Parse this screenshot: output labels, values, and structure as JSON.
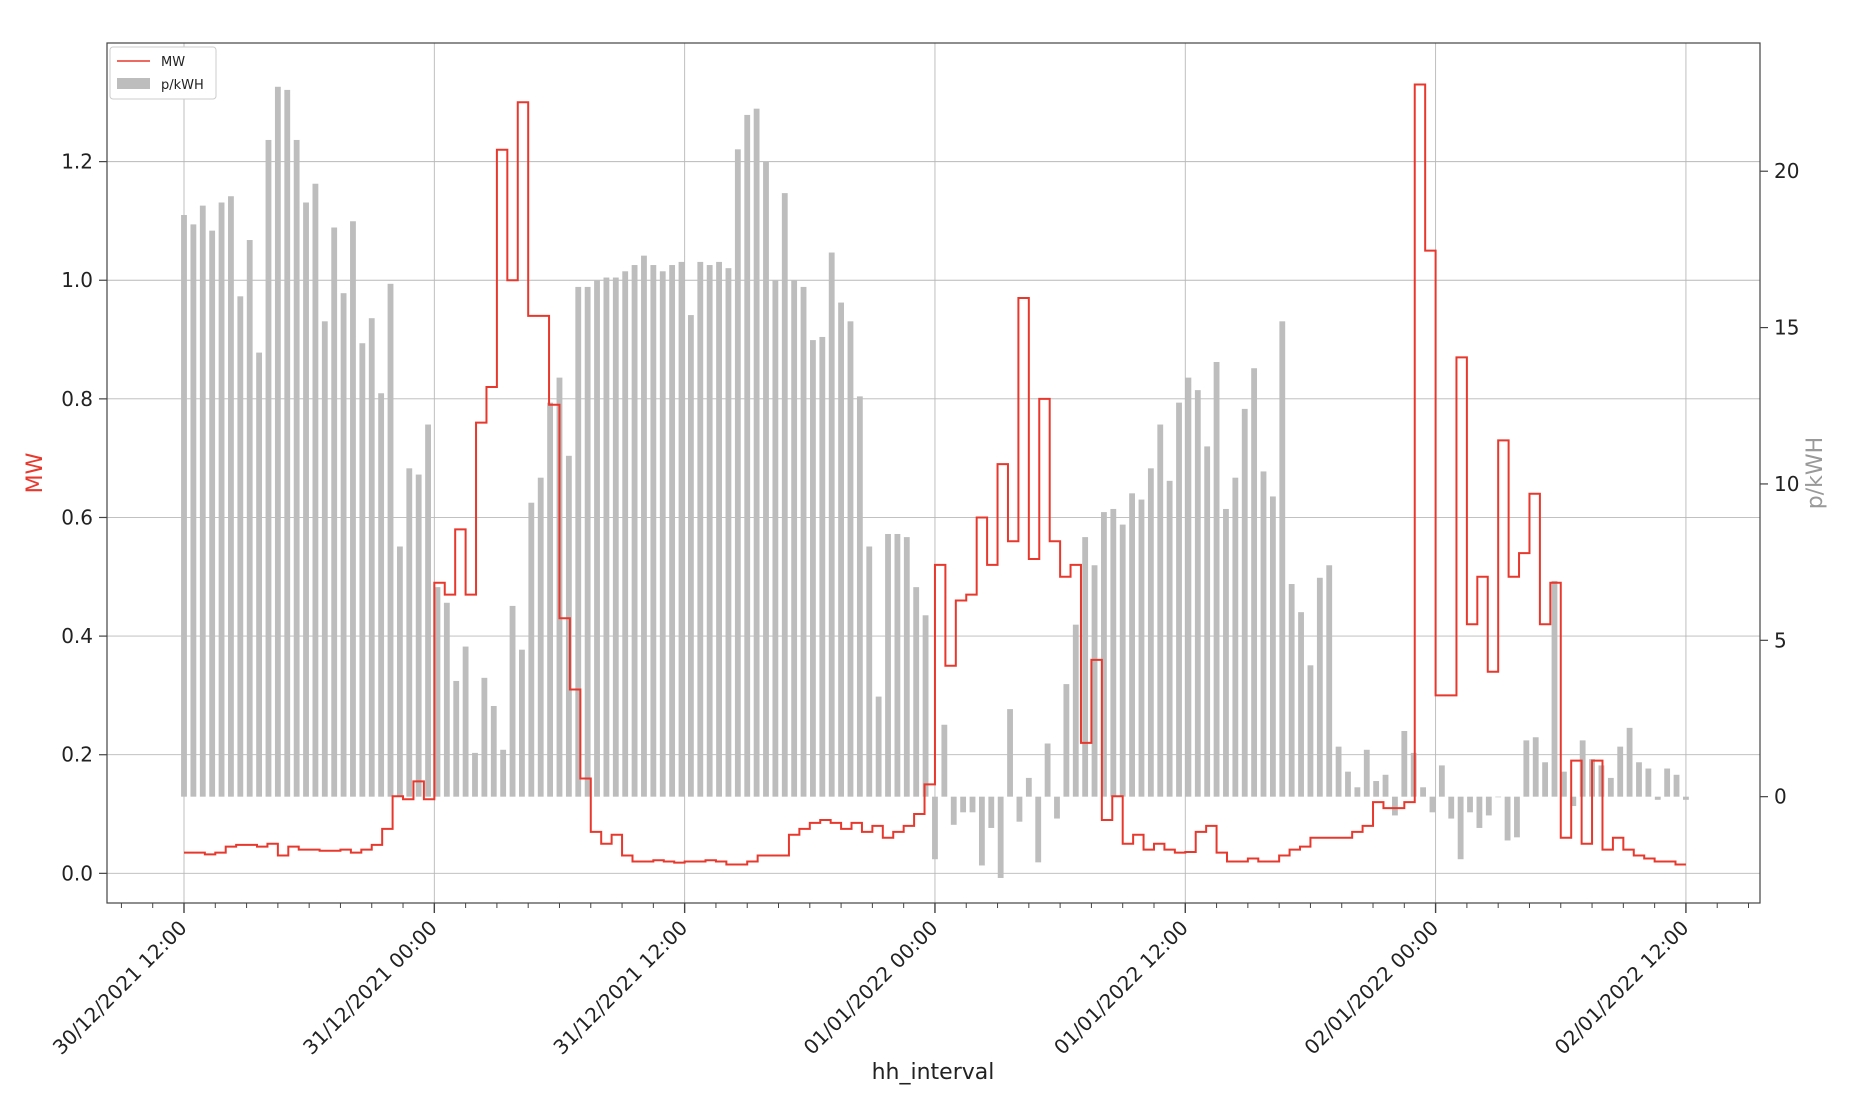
{
  "chart_data": {
    "type": "bar+line",
    "xlabel": "hh_interval",
    "ylabel_left": "MW",
    "ylabel_right": "p/kWH",
    "ylim_left": [
      -0.05,
      1.4
    ],
    "ylim_right": [
      -3.4,
      24.1
    ],
    "x_ticks": [
      {
        "label": "30/12/2021 12:00",
        "index": 0
      },
      {
        "label": "31/12/2021 00:00",
        "index": 24
      },
      {
        "label": "31/12/2021 12:00",
        "index": 48
      },
      {
        "label": "01/01/2022 00:00",
        "index": 72
      },
      {
        "label": "01/01/2022 12:00",
        "index": 96
      },
      {
        "label": "02/01/2022 00:00",
        "index": 120
      },
      {
        "label": "02/01/2022 12:00",
        "index": 144
      }
    ],
    "yticks_left": [
      "0.0",
      "0.2",
      "0.4",
      "0.6",
      "0.8",
      "1.0",
      "1.2"
    ],
    "yticks_right": [
      "0",
      "5",
      "10",
      "15",
      "20"
    ],
    "grid": true,
    "legend_position": "top-left",
    "colors": {
      "MW": "#e8382d",
      "p/kWH": "#bdbdbd"
    },
    "series": [
      {
        "name": "MW",
        "kind": "step",
        "values": [
          0.035,
          0.035,
          0.032,
          0.035,
          0.045,
          0.048,
          0.048,
          0.045,
          0.05,
          0.03,
          0.045,
          0.04,
          0.04,
          0.038,
          0.038,
          0.04,
          0.035,
          0.04,
          0.048,
          0.075,
          0.13,
          0.125,
          0.155,
          0.125,
          0.49,
          0.47,
          0.58,
          0.47,
          0.76,
          0.82,
          1.22,
          1.0,
          1.3,
          0.94,
          0.94,
          0.79,
          0.43,
          0.31,
          0.16,
          0.07,
          0.05,
          0.065,
          0.03,
          0.02,
          0.02,
          0.022,
          0.02,
          0.018,
          0.02,
          0.02,
          0.022,
          0.02,
          0.015,
          0.015,
          0.02,
          0.03,
          0.03,
          0.03,
          0.065,
          0.075,
          0.085,
          0.09,
          0.085,
          0.075,
          0.085,
          0.07,
          0.08,
          0.06,
          0.07,
          0.08,
          0.1,
          0.15,
          0.52,
          0.35,
          0.46,
          0.47,
          0.6,
          0.52,
          0.69,
          0.56,
          0.97,
          0.53,
          0.8,
          0.56,
          0.5,
          0.52,
          0.22,
          0.36,
          0.09,
          0.13,
          0.05,
          0.065,
          0.04,
          0.05,
          0.04,
          0.035,
          0.036,
          0.07,
          0.08,
          0.035,
          0.02,
          0.02,
          0.025,
          0.02,
          0.02,
          0.03,
          0.04,
          0.045,
          0.06,
          0.06,
          0.06,
          0.06,
          0.07,
          0.08,
          0.12,
          0.11,
          0.11,
          0.12,
          1.33,
          1.05,
          0.3,
          0.3,
          0.87,
          0.42,
          0.5,
          0.34,
          0.73,
          0.5,
          0.54,
          0.64,
          0.42,
          0.49,
          0.06,
          0.19,
          0.05,
          0.19,
          0.04,
          0.06,
          0.04,
          0.03,
          0.025,
          0.02,
          0.02,
          0.015,
          0.015
        ]
      },
      {
        "name": "p/kWH",
        "kind": "bar",
        "values": [
          18.6,
          18.3,
          18.9,
          18.1,
          19.0,
          19.2,
          16.0,
          17.8,
          14.2,
          21.0,
          22.7,
          22.6,
          21.0,
          19.0,
          19.6,
          15.2,
          18.2,
          16.1,
          18.4,
          14.5,
          15.3,
          12.9,
          16.4,
          8.0,
          10.5,
          10.3,
          11.9,
          6.7,
          6.2,
          3.7,
          4.8,
          1.4,
          3.8,
          2.9,
          1.5,
          6.1,
          4.7,
          9.4,
          10.2,
          12.6,
          13.4,
          10.9,
          16.3,
          16.3,
          16.5,
          16.6,
          16.6,
          16.8,
          17.0,
          17.3,
          17.0,
          16.8,
          17.0,
          17.1,
          15.4,
          17.1,
          17.0,
          17.1,
          16.9,
          20.7,
          21.8,
          22.0,
          20.3,
          16.5,
          19.3,
          16.5,
          16.3,
          14.6,
          14.7,
          17.4,
          15.8,
          15.2,
          12.8,
          8.0,
          3.2,
          8.4,
          8.4,
          8.3,
          6.7,
          5.8,
          -2.0,
          2.3,
          -0.9,
          -0.5,
          -0.5,
          -2.2,
          -1.0,
          -2.6,
          2.8,
          -0.8,
          0.6,
          -2.1,
          1.7,
          -0.7,
          3.6,
          5.5,
          8.3,
          7.4,
          9.1,
          9.2,
          8.7,
          9.7,
          9.5,
          10.5,
          11.9,
          10.1,
          12.6,
          13.4,
          13.0,
          11.2,
          13.9,
          9.2,
          10.2,
          12.4,
          13.7,
          10.4,
          9.6,
          15.2,
          6.8,
          5.9,
          4.2,
          7.0,
          7.4,
          1.6,
          0.8,
          0.3,
          1.5,
          0.5,
          0.7,
          -0.6,
          2.1,
          1.4,
          0.3,
          -0.5,
          1.0,
          -0.7,
          -2.0,
          -0.5,
          -1.0,
          -0.6,
          0.0,
          -1.4,
          -1.3,
          1.8,
          1.9,
          1.1,
          6.9,
          0.8,
          -0.3,
          1.8,
          1.2,
          1.0,
          0.6,
          1.6,
          2.2,
          1.1,
          0.9,
          -0.1,
          0.9,
          0.7,
          -0.1
        ]
      }
    ]
  }
}
